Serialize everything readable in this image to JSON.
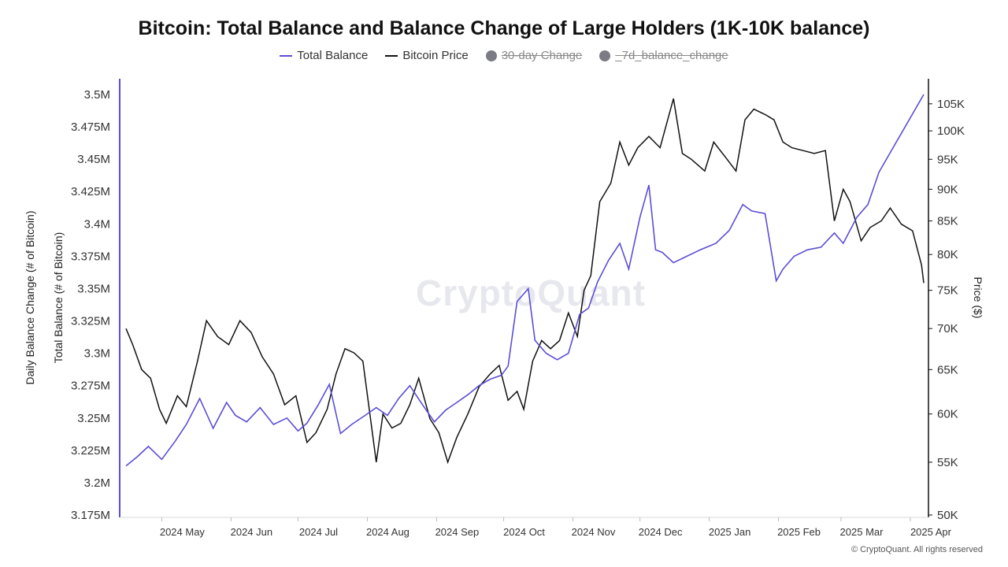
{
  "chart_data": {
    "type": "line",
    "title": "Bitcoin: Total Balance and Balance Change of Large Holders (1K-10K balance)",
    "legend": {
      "placement": "top-center",
      "items": [
        {
          "label": "Total Balance",
          "color": "#5b4ed6",
          "active": true,
          "marker": "line"
        },
        {
          "label": "Bitcoin Price",
          "color": "#111111",
          "active": true,
          "marker": "line"
        },
        {
          "label": "30-day Change",
          "color": "#7b7b86",
          "active": false,
          "marker": "dot"
        },
        {
          "label": "_7d_balance_change",
          "color": "#7b7b86",
          "active": false,
          "marker": "dot"
        }
      ]
    },
    "yaxis_left": {
      "label_outer": "Daily Balance Change (# of Bitcoin)",
      "label_inner": "Total Balance (# of Bitcoin)",
      "range": [
        3.175,
        3.5
      ],
      "ticks": [
        3.175,
        3.2,
        3.225,
        3.25,
        3.275,
        3.3,
        3.325,
        3.35,
        3.375,
        3.4,
        3.425,
        3.45,
        3.475,
        3.5
      ],
      "tick_labels": [
        "3.175M",
        "3.2M",
        "3.225M",
        "3.25M",
        "3.275M",
        "3.3M",
        "3.325M",
        "3.35M",
        "3.375M",
        "3.4M",
        "3.425M",
        "3.45M",
        "3.475M",
        "3.5M"
      ]
    },
    "yaxis_right": {
      "label": "Price ($)",
      "scale": "log",
      "range": [
        50000,
        108000
      ],
      "ticks": [
        50000,
        55000,
        60000,
        65000,
        70000,
        75000,
        80000,
        85000,
        90000,
        95000,
        100000,
        105000
      ],
      "tick_labels": [
        "50K",
        "55K",
        "60K",
        "65K",
        "70K",
        "75K",
        "80K",
        "85K",
        "90K",
        "95K",
        "100K",
        "105K"
      ]
    },
    "xaxis": {
      "range": [
        "2024-04-15",
        "2025-04-07"
      ],
      "ticks": [
        "2024-05-01",
        "2024-06-01",
        "2024-07-01",
        "2024-08-01",
        "2024-09-01",
        "2024-10-01",
        "2024-11-01",
        "2024-12-01",
        "2025-01-01",
        "2025-02-01",
        "2025-03-01",
        "2025-04-01"
      ],
      "tick_labels": [
        "2024 May",
        "2024 Jun",
        "2024 Jul",
        "2024 Aug",
        "2024 Sep",
        "2024 Oct",
        "2024 Nov",
        "2024 Dec",
        "2025 Jan",
        "2025 Feb",
        "2025 Mar",
        "2025 Apr"
      ]
    },
    "grid": false,
    "series": [
      {
        "name": "Total Balance",
        "axis": "left",
        "color": "#5b4ed6",
        "unit": "M BTC",
        "x": [
          "2024-04-15",
          "2024-04-20",
          "2024-04-25",
          "2024-05-01",
          "2024-05-07",
          "2024-05-12",
          "2024-05-18",
          "2024-05-24",
          "2024-05-30",
          "2024-06-03",
          "2024-06-08",
          "2024-06-14",
          "2024-06-20",
          "2024-06-26",
          "2024-07-01",
          "2024-07-05",
          "2024-07-10",
          "2024-07-15",
          "2024-07-20",
          "2024-07-25",
          "2024-07-31",
          "2024-08-05",
          "2024-08-10",
          "2024-08-15",
          "2024-08-20",
          "2024-08-25",
          "2024-08-31",
          "2024-09-05",
          "2024-09-10",
          "2024-09-15",
          "2024-09-20",
          "2024-09-25",
          "2024-09-30",
          "2024-10-03",
          "2024-10-07",
          "2024-10-12",
          "2024-10-15",
          "2024-10-20",
          "2024-10-25",
          "2024-10-30",
          "2024-11-04",
          "2024-11-08",
          "2024-11-12",
          "2024-11-17",
          "2024-11-22",
          "2024-11-26",
          "2024-12-01",
          "2024-12-05",
          "2024-12-08",
          "2024-12-11",
          "2024-12-16",
          "2024-12-22",
          "2024-12-28",
          "2025-01-04",
          "2025-01-10",
          "2025-01-16",
          "2025-01-20",
          "2025-01-26",
          "2025-01-31",
          "2025-02-03",
          "2025-02-08",
          "2025-02-14",
          "2025-02-20",
          "2025-02-26",
          "2025-03-02",
          "2025-03-08",
          "2025-03-13",
          "2025-03-18",
          "2025-03-23",
          "2025-03-28",
          "2025-04-02",
          "2025-04-07"
        ],
        "values": [
          3.213,
          3.22,
          3.228,
          3.218,
          3.232,
          3.245,
          3.265,
          3.242,
          3.262,
          3.252,
          3.247,
          3.258,
          3.245,
          3.25,
          3.24,
          3.246,
          3.26,
          3.276,
          3.238,
          3.245,
          3.252,
          3.258,
          3.252,
          3.265,
          3.275,
          3.262,
          3.247,
          3.256,
          3.262,
          3.268,
          3.275,
          3.28,
          3.283,
          3.29,
          3.34,
          3.35,
          3.31,
          3.3,
          3.295,
          3.3,
          3.33,
          3.335,
          3.355,
          3.372,
          3.385,
          3.365,
          3.405,
          3.43,
          3.38,
          3.378,
          3.37,
          3.375,
          3.38,
          3.385,
          3.395,
          3.415,
          3.41,
          3.408,
          3.356,
          3.365,
          3.375,
          3.38,
          3.382,
          3.393,
          3.385,
          3.405,
          3.415,
          3.44,
          3.455,
          3.47,
          3.485,
          3.5
        ]
      },
      {
        "name": "Bitcoin Price",
        "axis": "right",
        "color": "#111111",
        "unit": "USD",
        "x": [
          "2024-04-15",
          "2024-04-18",
          "2024-04-22",
          "2024-04-26",
          "2024-04-30",
          "2024-05-03",
          "2024-05-08",
          "2024-05-12",
          "2024-05-17",
          "2024-05-21",
          "2024-05-26",
          "2024-05-31",
          "2024-06-05",
          "2024-06-10",
          "2024-06-15",
          "2024-06-20",
          "2024-06-25",
          "2024-06-30",
          "2024-07-05",
          "2024-07-09",
          "2024-07-14",
          "2024-07-18",
          "2024-07-22",
          "2024-07-26",
          "2024-07-30",
          "2024-08-05",
          "2024-08-08",
          "2024-08-12",
          "2024-08-16",
          "2024-08-20",
          "2024-08-24",
          "2024-08-29",
          "2024-09-02",
          "2024-09-06",
          "2024-09-10",
          "2024-09-15",
          "2024-09-20",
          "2024-09-25",
          "2024-09-29",
          "2024-10-03",
          "2024-10-07",
          "2024-10-10",
          "2024-10-14",
          "2024-10-18",
          "2024-10-22",
          "2024-10-26",
          "2024-10-30",
          "2024-11-03",
          "2024-11-06",
          "2024-11-09",
          "2024-11-13",
          "2024-11-18",
          "2024-11-22",
          "2024-11-26",
          "2024-11-30",
          "2024-12-05",
          "2024-12-10",
          "2024-12-16",
          "2024-12-20",
          "2024-12-24",
          "2024-12-30",
          "2025-01-03",
          "2025-01-09",
          "2025-01-13",
          "2025-01-17",
          "2025-01-21",
          "2025-01-26",
          "2025-01-30",
          "2025-02-03",
          "2025-02-07",
          "2025-02-12",
          "2025-02-17",
          "2025-02-22",
          "2025-02-26",
          "2025-03-02",
          "2025-03-05",
          "2025-03-10",
          "2025-03-14",
          "2025-03-19",
          "2025-03-23",
          "2025-03-28",
          "2025-04-02",
          "2025-04-06",
          "2025-04-07"
        ],
        "values": [
          70000,
          68000,
          65000,
          64000,
          60500,
          59000,
          62000,
          60800,
          66000,
          71000,
          69000,
          68000,
          71000,
          69500,
          66500,
          64500,
          61000,
          62000,
          57000,
          58000,
          60500,
          64500,
          67500,
          67000,
          66000,
          55000,
          60000,
          58500,
          59000,
          61000,
          64000,
          59500,
          58000,
          55000,
          57500,
          60000,
          63000,
          64500,
          65500,
          61500,
          62500,
          60500,
          66000,
          68500,
          67500,
          68500,
          72000,
          69000,
          75000,
          77000,
          88000,
          91000,
          98000,
          94000,
          97000,
          99000,
          97000,
          106000,
          96000,
          95000,
          93000,
          98000,
          95000,
          93000,
          102000,
          104000,
          103000,
          102000,
          98000,
          97000,
          96500,
          96000,
          96500,
          85000,
          90000,
          88000,
          82000,
          84000,
          85000,
          87000,
          84500,
          83500,
          78500,
          76000
        ]
      }
    ]
  },
  "watermark": "CryptoQuant",
  "copyright": "© CryptoQuant. All rights reserved"
}
